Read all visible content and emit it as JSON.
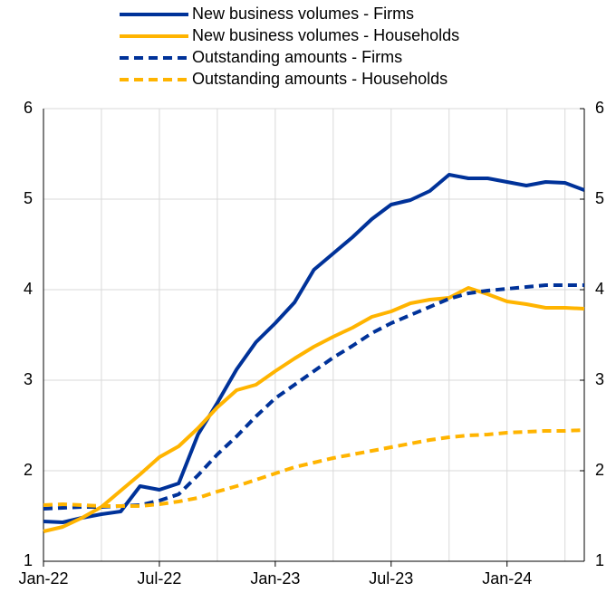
{
  "chart_data": {
    "type": "line",
    "categories": [
      "Jan-22",
      null,
      null,
      null,
      null,
      null,
      "Jul-22",
      null,
      null,
      null,
      null,
      null,
      "Jan-23",
      null,
      null,
      null,
      null,
      null,
      "Jul-23",
      null,
      null,
      null,
      null,
      null,
      "Jan-24",
      null,
      null,
      null,
      null
    ],
    "series": [
      {
        "name": "New business volumes - Firms",
        "color": "#003299",
        "dash": false,
        "values": [
          1.44,
          1.43,
          1.48,
          1.52,
          1.55,
          1.83,
          1.79,
          1.86,
          2.4,
          2.75,
          3.12,
          3.42,
          3.63,
          3.86,
          4.22,
          4.4,
          4.58,
          4.78,
          4.94,
          4.99,
          5.09,
          5.27,
          5.23,
          5.23,
          5.19,
          5.15,
          5.19,
          5.18,
          5.1
        ]
      },
      {
        "name": "New business volumes - Households",
        "color": "#ffb400",
        "dash": false,
        "values": [
          1.33,
          1.38,
          1.48,
          1.6,
          1.78,
          1.96,
          2.15,
          2.27,
          2.47,
          2.7,
          2.89,
          2.95,
          3.1,
          3.24,
          3.37,
          3.48,
          3.58,
          3.7,
          3.76,
          3.85,
          3.89,
          3.91,
          4.02,
          3.95,
          3.87,
          3.84,
          3.8,
          3.8,
          3.79
        ]
      },
      {
        "name": "Outstanding amounts - Firms",
        "color": "#003299",
        "dash": true,
        "values": [
          1.58,
          1.59,
          1.6,
          1.6,
          1.61,
          1.62,
          1.67,
          1.74,
          1.95,
          2.18,
          2.38,
          2.6,
          2.8,
          2.95,
          3.1,
          3.25,
          3.38,
          3.52,
          3.63,
          3.72,
          3.81,
          3.9,
          3.96,
          3.99,
          4.01,
          4.03,
          4.05,
          4.05,
          4.05
        ]
      },
      {
        "name": "Outstanding amounts - Households",
        "color": "#ffb400",
        "dash": true,
        "values": [
          1.62,
          1.63,
          1.62,
          1.61,
          1.61,
          1.61,
          1.63,
          1.66,
          1.7,
          1.77,
          1.83,
          1.9,
          1.97,
          2.04,
          2.09,
          2.14,
          2.18,
          2.22,
          2.26,
          2.3,
          2.34,
          2.37,
          2.39,
          2.4,
          2.42,
          2.43,
          2.44,
          2.44,
          2.45
        ]
      }
    ],
    "ylim": [
      1,
      6
    ],
    "yticks": [
      1,
      2,
      3,
      4,
      5,
      6
    ],
    "y2lim": [
      1,
      6
    ],
    "y2ticks": [
      1,
      2,
      3,
      4,
      5,
      6
    ],
    "grid": true,
    "legend": "top"
  }
}
